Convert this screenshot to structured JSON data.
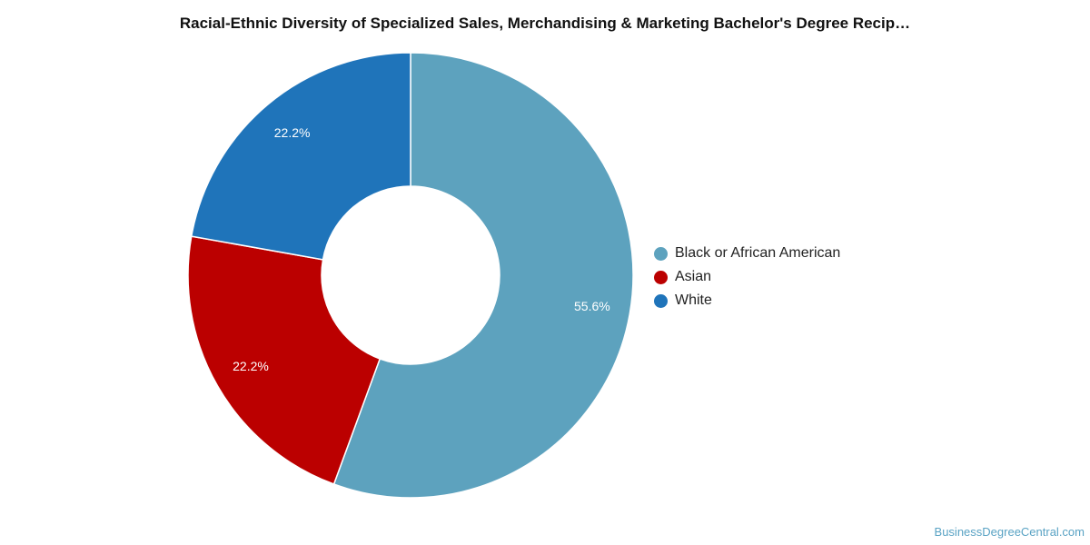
{
  "chart_data": {
    "type": "pie",
    "title": "Racial-Ethnic Diversity of Specialized Sales, Merchandising & Marketing Bachelor's Degree Recip…",
    "series": [
      {
        "name": "Black or African American",
        "value": 55.6,
        "label": "55.6%",
        "color": "#5da2be"
      },
      {
        "name": "Asian",
        "value": 22.2,
        "label": "22.2%",
        "color": "#bb0000"
      },
      {
        "name": "White",
        "value": 22.2,
        "label": "22.2%",
        "color": "#1f74ba"
      }
    ],
    "legend_position": "right",
    "donut": true
  },
  "footer": {
    "source": "BusinessDegreeCentral.com"
  }
}
